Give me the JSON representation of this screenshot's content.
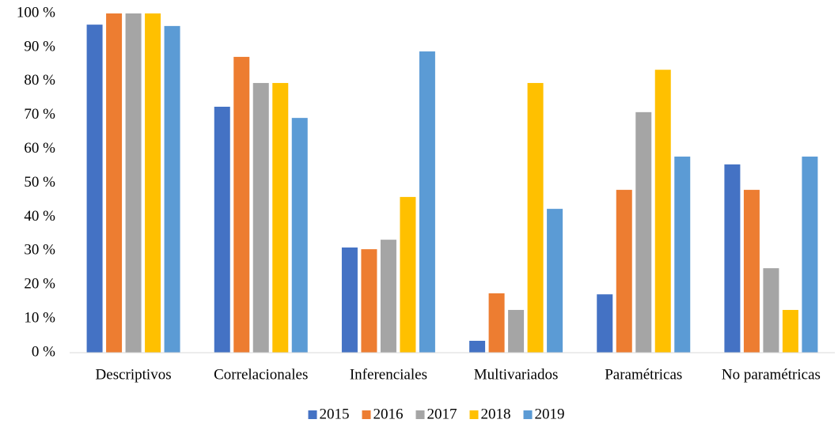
{
  "chart_data": {
    "type": "bar",
    "categories": [
      "Descriptivos",
      "Correlacionales",
      "Inferenciales",
      "Multivariados",
      "Paramétricas",
      "No paramétricas"
    ],
    "series": [
      {
        "name": "2015",
        "color": "#4472c4",
        "values": [
          96.7,
          72.5,
          31.0,
          3.5,
          17.2,
          55.5
        ]
      },
      {
        "name": "2016",
        "color": "#ed7d31",
        "values": [
          100,
          87.2,
          30.5,
          17.5,
          48.0,
          48.0
        ]
      },
      {
        "name": "2017",
        "color": "#a5a5a5",
        "values": [
          100,
          79.5,
          33.3,
          12.6,
          70.9,
          24.9
        ]
      },
      {
        "name": "2018",
        "color": "#ffc000",
        "values": [
          100,
          79.5,
          45.9,
          79.5,
          83.4,
          12.6
        ]
      },
      {
        "name": "2019",
        "color": "#5b9bd5",
        "values": [
          96.3,
          69.2,
          88.8,
          42.4,
          57.8,
          57.8
        ]
      }
    ],
    "ylim": [
      0,
      100
    ],
    "yticks": [
      {
        "value": 0,
        "label": "0 %"
      },
      {
        "value": 10,
        "label": "10 %"
      },
      {
        "value": 20,
        "label": "20 %"
      },
      {
        "value": 30,
        "label": "30 %"
      },
      {
        "value": 40,
        "label": "40 %"
      },
      {
        "value": 50,
        "label": "50 %"
      },
      {
        "value": 60,
        "label": "60 %"
      },
      {
        "value": 70,
        "label": "70 %"
      },
      {
        "value": 80,
        "label": "80 %"
      },
      {
        "value": 90,
        "label": "90 %"
      },
      {
        "value": 100,
        "label": "100 %"
      }
    ],
    "grid": false,
    "legend": "bottom"
  }
}
